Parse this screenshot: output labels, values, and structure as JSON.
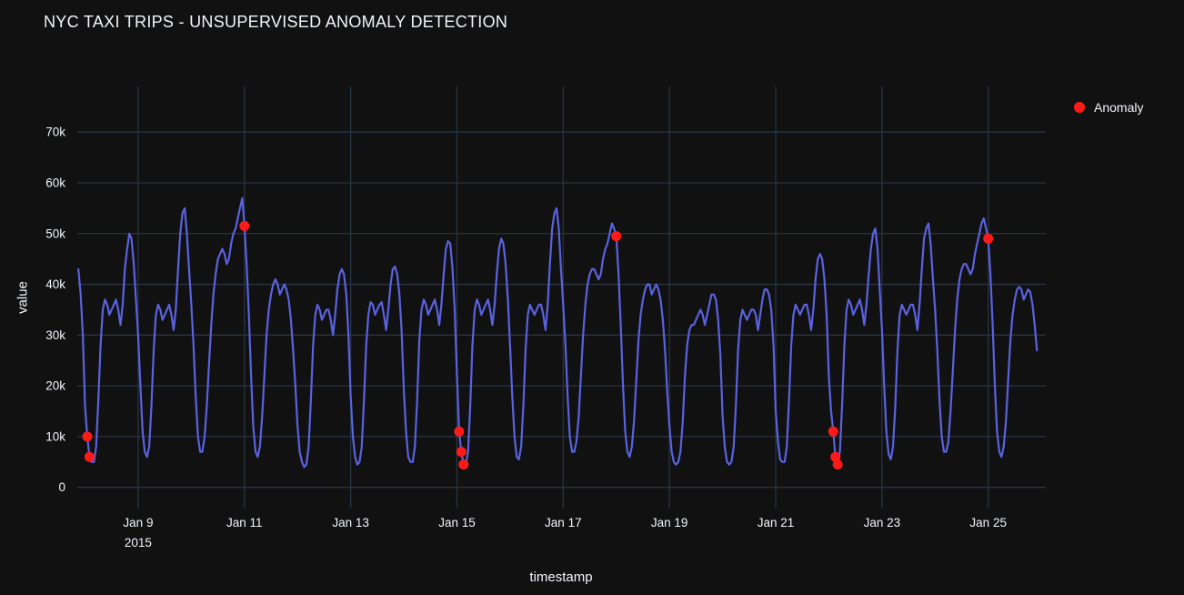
{
  "page": {
    "title": "NYC TAXI TRIPS - UNSUPERVISED ANOMALY DETECTION"
  },
  "legend": {
    "items": [
      {
        "label": "Anomaly",
        "color": "#ff1a1a"
      }
    ]
  },
  "chart_data": {
    "type": "line",
    "title": "NYC TAXI TRIPS - UNSUPERVISED ANOMALY DETECTION",
    "xlabel": "timestamp",
    "ylabel": "value",
    "values_unit": "thousands of trips (k)",
    "x_start": "2015-01-07T21:00:00",
    "step_hours": 1,
    "x_range": [
      "2015-01-07T20:30:00",
      "2015-01-26T02:00:00"
    ],
    "y_range_k": [
      -4,
      79
    ],
    "grid": true,
    "legend_position": "top-right",
    "colors": {
      "background": "#111111",
      "grid": "#283442",
      "text": "#f2f5fa",
      "line": "#5a62e0",
      "anomaly": "#ff1a1a"
    },
    "y_ticks": [
      {
        "value_k": 0,
        "label": "0"
      },
      {
        "value_k": 10,
        "label": "10k"
      },
      {
        "value_k": 20,
        "label": "20k"
      },
      {
        "value_k": 30,
        "label": "30k"
      },
      {
        "value_k": 40,
        "label": "40k"
      },
      {
        "value_k": 50,
        "label": "50k"
      },
      {
        "value_k": 60,
        "label": "60k"
      },
      {
        "value_k": 70,
        "label": "70k"
      }
    ],
    "x_ticks": [
      {
        "t": "2015-01-09T00:00:00",
        "label": "Jan 9",
        "sublabel": "2015"
      },
      {
        "t": "2015-01-11T00:00:00",
        "label": "Jan 11"
      },
      {
        "t": "2015-01-13T00:00:00",
        "label": "Jan 13"
      },
      {
        "t": "2015-01-15T00:00:00",
        "label": "Jan 15"
      },
      {
        "t": "2015-01-17T00:00:00",
        "label": "Jan 17"
      },
      {
        "t": "2015-01-19T00:00:00",
        "label": "Jan 19"
      },
      {
        "t": "2015-01-21T00:00:00",
        "label": "Jan 21"
      },
      {
        "t": "2015-01-23T00:00:00",
        "label": "Jan 23"
      },
      {
        "t": "2015-01-25T00:00:00",
        "label": "Jan 25"
      }
    ],
    "series": [
      {
        "name": "value",
        "color": "#5a62e0",
        "values_k": [
          43,
          38,
          30,
          16,
          10,
          6,
          5,
          5,
          8,
          17,
          28,
          35,
          37,
          36,
          34,
          35,
          36,
          37,
          35,
          32,
          36,
          43,
          47,
          50,
          49,
          44,
          37,
          30,
          20,
          11,
          7,
          6,
          8,
          16,
          27,
          34,
          36,
          35,
          33,
          34,
          35,
          36,
          34,
          31,
          35,
          43,
          50,
          54,
          55,
          50,
          43,
          36,
          28,
          18,
          10,
          7,
          7,
          10,
          16,
          24,
          32,
          38,
          42,
          45,
          46,
          47,
          46,
          44,
          45,
          48,
          50,
          51,
          53,
          55,
          57,
          51.5,
          44,
          34,
          22,
          12,
          7,
          6,
          8,
          14,
          22,
          30,
          35,
          38,
          40,
          41,
          40,
          38,
          39,
          40,
          39,
          37,
          33,
          27,
          20,
          12,
          7,
          5,
          4,
          4.5,
          8,
          17,
          28,
          34,
          36,
          35,
          33,
          34,
          35,
          35,
          33,
          30,
          34,
          39,
          42,
          43,
          42,
          38,
          30,
          18,
          10,
          6,
          4.5,
          5,
          8,
          17,
          28,
          34,
          36.5,
          36,
          34,
          35,
          36,
          36.5,
          34,
          31,
          35,
          40,
          43,
          43.5,
          42,
          38,
          31,
          19,
          11,
          6,
          5,
          5,
          8,
          17,
          29,
          35,
          37,
          36,
          34,
          35,
          36,
          37,
          35,
          32,
          36,
          42,
          47,
          48.5,
          48,
          43,
          35,
          22,
          11,
          7,
          4.5,
          4.5,
          7,
          16,
          28,
          35,
          37,
          36,
          34,
          35,
          36,
          37,
          35,
          32,
          36,
          42,
          47,
          49,
          48,
          44,
          37,
          28,
          18,
          10,
          6,
          5.5,
          8,
          16,
          27,
          34,
          36,
          35,
          34,
          35,
          36,
          36,
          34,
          31,
          36,
          44,
          51,
          54,
          55,
          51,
          43,
          36,
          28,
          18,
          10,
          7,
          7,
          9,
          14,
          22,
          30,
          36,
          40,
          42,
          43,
          43,
          42,
          41,
          42,
          45,
          47,
          48,
          50,
          52,
          51,
          49.5,
          42,
          32,
          20,
          11,
          7,
          6,
          8,
          13,
          21,
          29,
          34,
          37,
          39,
          40,
          40,
          38,
          39,
          40,
          39,
          37,
          33,
          27,
          19,
          12,
          7,
          5,
          4.5,
          5,
          7,
          13,
          22,
          28,
          31,
          32,
          32,
          33,
          34,
          35,
          34,
          32,
          34,
          36,
          38,
          38,
          37,
          33,
          26,
          14,
          8,
          5,
          4.5,
          5,
          8,
          16,
          27,
          33,
          35,
          34,
          33,
          34,
          35,
          35,
          34,
          31,
          34,
          37,
          39,
          39,
          38,
          35,
          28,
          15,
          9,
          5.5,
          5,
          5,
          8,
          17,
          28,
          34,
          36,
          35,
          34,
          35,
          36,
          36,
          34,
          31,
          35,
          41,
          45,
          46,
          45,
          41,
          34,
          22,
          15,
          11,
          6,
          4.5,
          7,
          16,
          28,
          35,
          37,
          36,
          34,
          35,
          36,
          37,
          35,
          32,
          36,
          42,
          47,
          50,
          51,
          47,
          39,
          31,
          20,
          11,
          6.5,
          5.5,
          8,
          16,
          27,
          34,
          36,
          35,
          34,
          35,
          36,
          36,
          34,
          31,
          36,
          43,
          49,
          51,
          52,
          48,
          41,
          35,
          27,
          17,
          10,
          7,
          7,
          9,
          15,
          23,
          31,
          37,
          41,
          43,
          44,
          44,
          43,
          42,
          43,
          46,
          48,
          50,
          52,
          53,
          51,
          49,
          42,
          32,
          20,
          11,
          7,
          6,
          8,
          13,
          21,
          29,
          34,
          37,
          39,
          39.5,
          39,
          37,
          38,
          39,
          38.5,
          36,
          32,
          27
        ]
      }
    ],
    "anomalies": {
      "name": "Anomaly",
      "color": "#ff1a1a",
      "points": [
        {
          "t": "2015-01-08T01:00:00",
          "value_k": 10
        },
        {
          "t": "2015-01-08T02:00:00",
          "value_k": 6
        },
        {
          "t": "2015-01-11T00:00:00",
          "value_k": 51.5
        },
        {
          "t": "2015-01-15T01:00:00",
          "value_k": 11
        },
        {
          "t": "2015-01-15T02:00:00",
          "value_k": 7
        },
        {
          "t": "2015-01-15T03:00:00",
          "value_k": 4.5
        },
        {
          "t": "2015-01-18T00:00:00",
          "value_k": 49.5
        },
        {
          "t": "2015-01-22T02:00:00",
          "value_k": 11
        },
        {
          "t": "2015-01-22T03:00:00",
          "value_k": 6
        },
        {
          "t": "2015-01-22T04:00:00",
          "value_k": 4.5
        },
        {
          "t": "2015-01-25T00:00:00",
          "value_k": 49
        }
      ]
    }
  }
}
